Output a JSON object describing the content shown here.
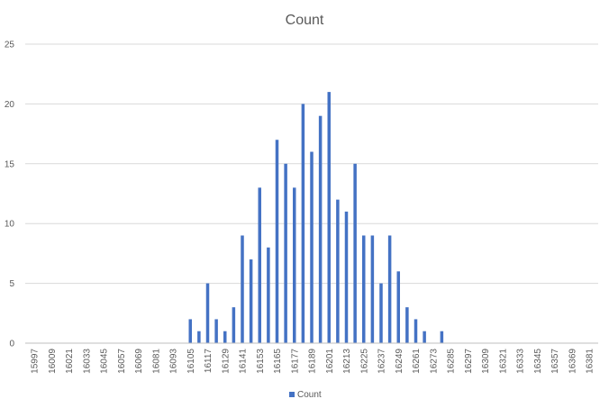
{
  "chart_data": {
    "type": "bar",
    "title": "Count",
    "xlabel": "",
    "ylabel": "",
    "ylim": [
      0,
      25
    ],
    "y_ticks": [
      0,
      5,
      10,
      15,
      20,
      25
    ],
    "grid": true,
    "legend": {
      "position": "bottom",
      "entries": [
        "Count"
      ]
    },
    "x_tick_labels": [
      15997,
      16009,
      16021,
      16033,
      16045,
      16057,
      16069,
      16081,
      16093,
      16105,
      16117,
      16129,
      16141,
      16153,
      16165,
      16177,
      16189,
      16201,
      16213,
      16225,
      16237,
      16249,
      16261,
      16273,
      16285,
      16297,
      16309,
      16321,
      16333,
      16345,
      16357,
      16369,
      16381
    ],
    "x_range": [
      15997,
      16381
    ],
    "x_step": 6,
    "series": [
      {
        "name": "Count",
        "color": "#4472c4",
        "points": [
          {
            "x": 16105,
            "y": 2
          },
          {
            "x": 16111,
            "y": 1
          },
          {
            "x": 16117,
            "y": 5
          },
          {
            "x": 16123,
            "y": 2
          },
          {
            "x": 16129,
            "y": 1
          },
          {
            "x": 16135,
            "y": 3
          },
          {
            "x": 16141,
            "y": 9
          },
          {
            "x": 16147,
            "y": 7
          },
          {
            "x": 16153,
            "y": 13
          },
          {
            "x": 16159,
            "y": 8
          },
          {
            "x": 16165,
            "y": 17
          },
          {
            "x": 16171,
            "y": 15
          },
          {
            "x": 16177,
            "y": 13
          },
          {
            "x": 16183,
            "y": 20
          },
          {
            "x": 16189,
            "y": 16
          },
          {
            "x": 16195,
            "y": 19
          },
          {
            "x": 16201,
            "y": 21
          },
          {
            "x": 16207,
            "y": 12
          },
          {
            "x": 16213,
            "y": 11
          },
          {
            "x": 16219,
            "y": 15
          },
          {
            "x": 16225,
            "y": 9
          },
          {
            "x": 16231,
            "y": 9
          },
          {
            "x": 16237,
            "y": 5
          },
          {
            "x": 16243,
            "y": 9
          },
          {
            "x": 16249,
            "y": 6
          },
          {
            "x": 16255,
            "y": 3
          },
          {
            "x": 16261,
            "y": 2
          },
          {
            "x": 16267,
            "y": 1
          },
          {
            "x": 16279,
            "y": 1
          }
        ]
      }
    ]
  }
}
